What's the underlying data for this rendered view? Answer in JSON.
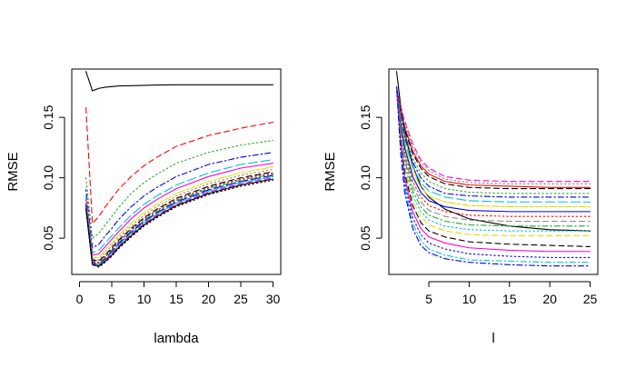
{
  "figure": {
    "panel_count": 2
  },
  "chart_data": [
    {
      "type": "line",
      "xlabel": "lambda",
      "ylabel": "RMSE",
      "xlim": [
        0,
        30
      ],
      "ylim": [
        0.02,
        0.19
      ],
      "x_ticks": [
        0,
        5,
        10,
        15,
        20,
        25,
        30
      ],
      "y_ticks": [
        0.05,
        0.1,
        0.15
      ],
      "x": [
        1,
        2,
        3,
        4,
        5,
        6,
        8,
        10,
        12,
        15,
        20,
        25,
        30
      ],
      "grid": false,
      "legend": "none",
      "series": [
        {
          "color": "#000000",
          "dash": "solid",
          "values": [
            0.188,
            0.172,
            0.174,
            0.175,
            0.1755,
            0.176,
            0.1762,
            0.1765,
            0.1768,
            0.177,
            0.177,
            0.177,
            0.177
          ]
        },
        {
          "color": "#ff0000",
          "dash": "dashed",
          "values": [
            0.158,
            0.062,
            0.068,
            0.076,
            0.083,
            0.09,
            0.101,
            0.11,
            0.117,
            0.126,
            0.135,
            0.141,
            0.146
          ]
        },
        {
          "color": "#22aa22",
          "dash": "dotted",
          "values": [
            0.1,
            0.05,
            0.054,
            0.061,
            0.068,
            0.075,
            0.087,
            0.096,
            0.103,
            0.112,
            0.121,
            0.127,
            0.131
          ]
        },
        {
          "color": "#0000ee",
          "dash": "dashdot",
          "values": [
            0.09,
            0.042,
            0.045,
            0.052,
            0.058,
            0.065,
            0.076,
            0.085,
            0.092,
            0.101,
            0.111,
            0.117,
            0.121
          ]
        },
        {
          "color": "#00bbee",
          "dash": "longdash",
          "values": [
            0.085,
            0.038,
            0.04,
            0.046,
            0.052,
            0.058,
            0.069,
            0.078,
            0.085,
            0.094,
            0.104,
            0.111,
            0.115
          ]
        },
        {
          "color": "#ff00cc",
          "dash": "solid",
          "values": [
            0.082,
            0.036,
            0.037,
            0.043,
            0.049,
            0.055,
            0.066,
            0.075,
            0.082,
            0.091,
            0.101,
            0.108,
            0.112
          ]
        },
        {
          "color": "#dddd00",
          "dash": "twodash",
          "values": [
            0.08,
            0.034,
            0.034,
            0.04,
            0.046,
            0.052,
            0.062,
            0.071,
            0.078,
            0.087,
            0.097,
            0.104,
            0.109
          ]
        },
        {
          "color": "#888888",
          "dash": "dotted",
          "values": [
            0.079,
            0.033,
            0.032,
            0.038,
            0.044,
            0.05,
            0.06,
            0.069,
            0.076,
            0.085,
            0.095,
            0.102,
            0.107
          ]
        },
        {
          "color": "#000000",
          "dash": "dashed",
          "values": [
            0.078,
            0.032,
            0.031,
            0.036,
            0.042,
            0.048,
            0.058,
            0.067,
            0.074,
            0.083,
            0.093,
            0.1,
            0.105
          ]
        },
        {
          "color": "#ff0000",
          "dash": "dotted",
          "values": [
            0.077,
            0.031,
            0.03,
            0.035,
            0.041,
            0.047,
            0.057,
            0.066,
            0.073,
            0.082,
            0.092,
            0.099,
            0.104
          ]
        },
        {
          "color": "#22aa22",
          "dash": "dashdot",
          "values": [
            0.076,
            0.03,
            0.029,
            0.034,
            0.04,
            0.046,
            0.056,
            0.065,
            0.072,
            0.081,
            0.091,
            0.098,
            0.103
          ]
        },
        {
          "color": "#0000ee",
          "dash": "longdash",
          "values": [
            0.076,
            0.03,
            0.028,
            0.033,
            0.039,
            0.045,
            0.055,
            0.064,
            0.071,
            0.08,
            0.09,
            0.097,
            0.102
          ]
        },
        {
          "color": "#00bbee",
          "dash": "twodash",
          "values": [
            0.075,
            0.029,
            0.028,
            0.032,
            0.038,
            0.044,
            0.054,
            0.063,
            0.07,
            0.079,
            0.089,
            0.096,
            0.101
          ]
        },
        {
          "color": "#ff00cc",
          "dash": "dashed",
          "values": [
            0.075,
            0.029,
            0.027,
            0.032,
            0.037,
            0.043,
            0.053,
            0.062,
            0.069,
            0.078,
            0.088,
            0.095,
            0.1
          ]
        },
        {
          "color": "#000000",
          "dash": "solid",
          "values": [
            0.074,
            0.028,
            0.027,
            0.031,
            0.036,
            0.042,
            0.052,
            0.061,
            0.068,
            0.077,
            0.087,
            0.094,
            0.099
          ]
        },
        {
          "color": "#000000",
          "dash": "dotted",
          "values": [
            0.074,
            0.028,
            0.026,
            0.03,
            0.035,
            0.041,
            0.051,
            0.06,
            0.067,
            0.076,
            0.086,
            0.093,
            0.098
          ]
        }
      ]
    },
    {
      "type": "line",
      "xlabel": "l",
      "ylabel": "RMSE",
      "xlim": [
        1,
        25
      ],
      "ylim": [
        0.02,
        0.19
      ],
      "x_ticks": [
        5,
        10,
        15,
        20,
        25
      ],
      "y_ticks": [
        0.05,
        0.1,
        0.15
      ],
      "x": [
        1,
        1.5,
        2,
        3,
        4,
        5,
        7,
        10,
        15,
        20,
        25
      ],
      "grid": false,
      "legend": "none",
      "series": [
        {
          "color": "#000000",
          "dash": "solid",
          "values": [
            0.188,
            0.16,
            0.138,
            0.11,
            0.093,
            0.084,
            0.074,
            0.066,
            0.06,
            0.057,
            0.056
          ]
        },
        {
          "color": "#ff00cc",
          "dash": "dashed",
          "values": [
            0.175,
            0.16,
            0.147,
            0.128,
            0.115,
            0.108,
            0.101,
            0.098,
            0.097,
            0.097,
            0.097
          ]
        },
        {
          "color": "#888888",
          "dash": "dotted",
          "values": [
            0.175,
            0.158,
            0.145,
            0.125,
            0.113,
            0.106,
            0.099,
            0.096,
            0.095,
            0.095,
            0.095
          ]
        },
        {
          "color": "#ff0000",
          "dash": "solid",
          "values": [
            0.175,
            0.156,
            0.142,
            0.122,
            0.11,
            0.103,
            0.097,
            0.094,
            0.093,
            0.092,
            0.092
          ]
        },
        {
          "color": "#000000",
          "dash": "dashed",
          "values": [
            0.175,
            0.155,
            0.14,
            0.12,
            0.108,
            0.101,
            0.095,
            0.092,
            0.091,
            0.091,
            0.091
          ]
        },
        {
          "color": "#22aa22",
          "dash": "dotted",
          "values": [
            0.175,
            0.153,
            0.137,
            0.116,
            0.104,
            0.097,
            0.091,
            0.088,
            0.087,
            0.087,
            0.087
          ]
        },
        {
          "color": "#0000ee",
          "dash": "dashdot",
          "values": [
            0.175,
            0.151,
            0.134,
            0.113,
            0.1,
            0.093,
            0.087,
            0.085,
            0.084,
            0.084,
            0.084
          ]
        },
        {
          "color": "#00bbee",
          "dash": "longdash",
          "values": [
            0.175,
            0.149,
            0.131,
            0.109,
            0.096,
            0.089,
            0.084,
            0.081,
            0.08,
            0.08,
            0.08
          ]
        },
        {
          "color": "#dddd00",
          "dash": "twodash",
          "values": [
            0.175,
            0.147,
            0.128,
            0.105,
            0.092,
            0.085,
            0.08,
            0.077,
            0.076,
            0.076,
            0.076
          ]
        },
        {
          "color": "#0000ee",
          "dash": "solid",
          "values": [
            0.175,
            0.145,
            0.125,
            0.101,
            0.088,
            0.081,
            0.076,
            0.073,
            0.072,
            0.072,
            0.072
          ]
        },
        {
          "color": "#ff0000",
          "dash": "dotted",
          "values": [
            0.175,
            0.143,
            0.121,
            0.097,
            0.084,
            0.077,
            0.072,
            0.069,
            0.068,
            0.068,
            0.068
          ]
        },
        {
          "color": "#888888",
          "dash": "dashed",
          "values": [
            0.175,
            0.141,
            0.118,
            0.093,
            0.08,
            0.073,
            0.068,
            0.065,
            0.064,
            0.064,
            0.064
          ]
        },
        {
          "color": "#22aa22",
          "dash": "dashdot",
          "values": [
            0.175,
            0.139,
            0.115,
            0.089,
            0.076,
            0.069,
            0.064,
            0.061,
            0.06,
            0.06,
            0.06
          ]
        },
        {
          "color": "#00bbee",
          "dash": "dotted",
          "values": [
            0.175,
            0.137,
            0.111,
            0.085,
            0.072,
            0.065,
            0.06,
            0.057,
            0.056,
            0.056,
            0.056
          ]
        },
        {
          "color": "#dddd00",
          "dash": "dashed",
          "values": [
            0.175,
            0.135,
            0.108,
            0.081,
            0.068,
            0.061,
            0.056,
            0.053,
            0.052,
            0.052,
            0.052
          ]
        },
        {
          "color": "#000000",
          "dash": "dashed",
          "values": [
            0.175,
            0.132,
            0.104,
            0.077,
            0.063,
            0.056,
            0.051,
            0.047,
            0.045,
            0.044,
            0.043
          ]
        },
        {
          "color": "#ff00cc",
          "dash": "solid",
          "values": [
            0.175,
            0.13,
            0.1,
            0.072,
            0.058,
            0.051,
            0.046,
            0.042,
            0.04,
            0.039,
            0.039
          ]
        },
        {
          "color": "#0000ee",
          "dash": "dotted",
          "values": [
            0.175,
            0.127,
            0.096,
            0.067,
            0.053,
            0.046,
            0.041,
            0.037,
            0.035,
            0.034,
            0.034
          ]
        },
        {
          "color": "#00bbee",
          "dash": "dashdot",
          "values": [
            0.175,
            0.124,
            0.092,
            0.062,
            0.048,
            0.041,
            0.036,
            0.032,
            0.031,
            0.03,
            0.03
          ]
        },
        {
          "color": "#0000ee",
          "dash": "dashdot",
          "values": [
            0.175,
            0.121,
            0.088,
            0.058,
            0.044,
            0.038,
            0.033,
            0.03,
            0.028,
            0.027,
            0.027
          ]
        }
      ]
    }
  ]
}
